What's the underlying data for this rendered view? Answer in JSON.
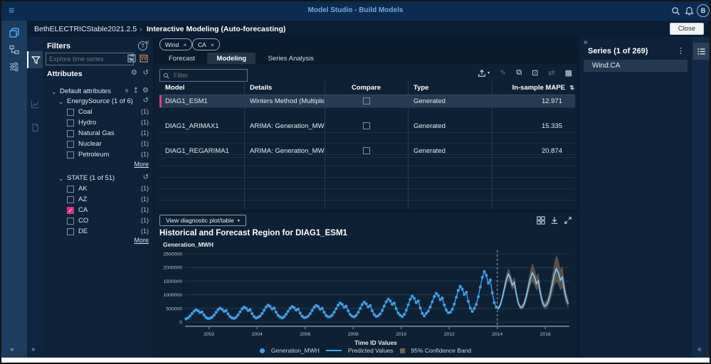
{
  "app": {
    "title": "Model Studio - Build Models",
    "avatar_initial": "B"
  },
  "breadcrumb": {
    "project": "BethELECTRICStable2021.2.5",
    "separator": "›",
    "page": "Interactive Modeling (Auto-forecasting)",
    "close_label": "Close"
  },
  "icons": {
    "hamburger": "≡",
    "collapse": "«",
    "expand": "»",
    "kebab": "⋮",
    "help": "?",
    "gear": "⚙",
    "reset": "↺",
    "chevron": "⌄",
    "caret": "▾",
    "close": "×",
    "check": "✓",
    "pencil": "✎",
    "copy": "⧉",
    "save": "⊡",
    "swap": "⇄",
    "table": "▦",
    "sort": "⇅",
    "pin": "↥"
  },
  "filters": {
    "title": "Filters",
    "search_placeholder": "Explore time series",
    "attributes_label": "Attributes",
    "default_group_label": "Default attributes",
    "energy": {
      "label": "EnergySource (1 of 6)",
      "items": [
        {
          "label": "Coal",
          "count": "(1)",
          "checked": false
        },
        {
          "label": "Hydro",
          "count": "(1)",
          "checked": false
        },
        {
          "label": "Natural Gas",
          "count": "(1)",
          "checked": false
        },
        {
          "label": "Nuclear",
          "count": "(1)",
          "checked": false
        },
        {
          "label": "Petroleum",
          "count": "(1)",
          "checked": false
        }
      ],
      "more_label": "More"
    },
    "state": {
      "label": "STATE (1 of 51)",
      "items": [
        {
          "label": "AK",
          "count": "(1)",
          "checked": false
        },
        {
          "label": "AZ",
          "count": "(1)",
          "checked": false
        },
        {
          "label": "CA",
          "count": "(1)",
          "checked": true
        },
        {
          "label": "CO",
          "count": "(1)",
          "checked": false
        },
        {
          "label": "DE",
          "count": "(1)",
          "checked": false
        }
      ],
      "more_label": "More"
    }
  },
  "tags": [
    {
      "label": "Wind"
    },
    {
      "label": "CA"
    }
  ],
  "tabs": [
    {
      "label": "Forecast",
      "active": false
    },
    {
      "label": "Modeling",
      "active": true
    },
    {
      "label": "Series Analysis",
      "active": false
    }
  ],
  "table": {
    "filter_placeholder": "Filter",
    "toolbar_icons": [
      "export",
      "edit",
      "copy",
      "save",
      "compare",
      "columns"
    ],
    "columns": [
      "Model",
      "Details",
      "Compare",
      "Type",
      "In-sample MAPE"
    ],
    "rows": [
      {
        "model": "DIAG1_ESM1",
        "details": "Winters Method (Multiplicati...",
        "compare_checked": false,
        "type": "Generated",
        "mape": "12.971",
        "selected": true
      },
      {
        "model": "DIAG1_ARIMAX1",
        "details": "ARIMA:  Generation_MWH  ...",
        "compare_checked": false,
        "type": "Generated",
        "mape": "15.335",
        "selected": false
      },
      {
        "model": "DIAG1_REGARIMA1",
        "details": "ARIMA:  Generation_MWH  ...",
        "compare_checked": false,
        "type": "Generated",
        "mape": "20.874",
        "selected": false
      }
    ]
  },
  "diagnostic": {
    "button_label": "View diagnostic plot/table",
    "header_icons": [
      "grid",
      "download",
      "expand"
    ]
  },
  "series_panel": {
    "title": "Series (1 of 269)",
    "items": [
      {
        "label": "Wind:CA",
        "selected": true
      }
    ]
  },
  "chart_data": {
    "type": "line",
    "title": "Historical and Forecast Region for DIAG1_ESM1",
    "ylabel": "Generation_MWH",
    "xlabel": "Time ID Values",
    "ylim": [
      0,
      2500000
    ],
    "y_ticks": [
      0,
      500000,
      1000000,
      1500000,
      2000000,
      2500000
    ],
    "x_range": [
      2001,
      2017
    ],
    "x_ticks": [
      2002,
      2004,
      2006,
      2008,
      2010,
      2012,
      2014,
      2016
    ],
    "forecast_boundary": 2014,
    "unit_scale": 1000,
    "legend": [
      {
        "marker": "dot",
        "label": "Generation_MWH"
      },
      {
        "marker": "line",
        "label": "Predicted Values"
      },
      {
        "marker": "band",
        "label": "95% Confidence Band"
      }
    ],
    "colors": {
      "series": "#3fa0e8",
      "predicted": "#7fc2f0",
      "band": "#5e564b",
      "boundary": "#c7d2dd"
    },
    "historical": {
      "start_year": 2001,
      "values_by_year": [
        [
          118,
          153,
          223,
          310,
          398,
          450,
          415,
          345,
          373,
          258,
          170,
          128
        ],
        [
          140,
          179,
          257,
          354,
          452,
          510,
          471,
          393,
          424,
          296,
          198,
          151
        ],
        [
          132,
          176,
          264,
          374,
          484,
          550,
          506,
          418,
          453,
          308,
          198,
          145
        ],
        [
          174,
          221,
          315,
          432,
          550,
          620,
          573,
          479,
          517,
          362,
          244,
          188
        ],
        [
          152,
          196,
          284,
          394,
          504,
          570,
          526,
          438,
          473,
          328,
          218,
          165
        ],
        [
          173,
          219,
          311,
          426,
          541,
          610,
          564,
          472,
          509,
          357,
          242,
          187
        ],
        [
          197,
          250,
          356,
          488,
          621,
          700,
          647,
          541,
          583,
          409,
          276,
          212
        ],
        [
          189,
          246,
          360,
          502,
          645,
          730,
          673,
          559,
          605,
          417,
          274,
          206
        ],
        [
          232,
          296,
          424,
          584,
          744,
          840,
          776,
          648,
          699,
          488,
          328,
          251
        ],
        [
          200,
          279,
          437,
          634,
          832,
          950,
          871,
          713,
          776,
          516,
          318,
          223
        ],
        [
          319,
          396,
          550,
          742,
          935,
          1050,
          973,
          819,
          881,
          627,
          434,
          342
        ],
        [
          360,
          460,
          660,
          910,
          1160,
          1310,
          1210,
          1010,
          1090,
          760,
          510,
          390
        ],
        [
          501,
          643,
          927,
          1282,
          1637,
          1850,
          1708,
          1424,
          1538,
          1069,
          714,
          544
        ]
      ]
    },
    "forecast": {
      "start_year": 2014,
      "predicted_by_year": [
        [
          496,
          628,
          892,
          1222,
          1552,
          1750,
          1618,
          1354,
          1460,
          1024,
          694,
          536
        ],
        [
          546,
          678,
          942,
          1272,
          1602,
          1800,
          1668,
          1404,
          1510,
          1074,
          744,
          586
        ],
        [
          630,
          769,
          1047,
          1394,
          1742,
          1950,
          1811,
          1533,
          1644,
          1186,
          838,
          671
        ]
      ],
      "upper_by_year": [
        [
          560,
          710,
          1008,
          1381,
          1754,
          1978,
          1828,
          1530,
          1650,
          1157,
          784,
          606
        ],
        [
          655,
          814,
          1130,
          1526,
          1922,
          2160,
          2002,
          1685,
          1812,
          1289,
          893,
          703
        ],
        [
          794,
          969,
          1319,
          1756,
          2195,
          2457,
          2282,
          1932,
          2071,
          1494,
          1056,
          845
        ]
      ],
      "lower_by_year": [
        [
          432,
          546,
          776,
          1063,
          1350,
          1523,
          1408,
          1178,
          1270,
          891,
          604,
          466
        ],
        [
          448,
          556,
          772,
          1043,
          1314,
          1476,
          1368,
          1151,
          1238,
          881,
          610,
          481
        ],
        [
          479,
          584,
          796,
          1060,
          1324,
          1482,
          1376,
          1165,
          1249,
          901,
          637,
          510
        ]
      ]
    }
  }
}
